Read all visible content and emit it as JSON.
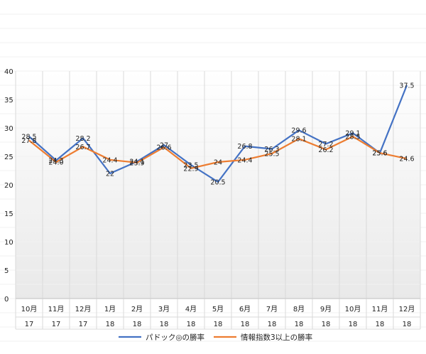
{
  "chart_data": {
    "type": "line",
    "categories": [
      "10月",
      "11月",
      "12月",
      "1月",
      "2月",
      "3月",
      "4月",
      "5月",
      "6月",
      "7月",
      "8月",
      "9月",
      "10月",
      "11月",
      "12月"
    ],
    "year_labels": [
      "17",
      "17",
      "17",
      "18",
      "18",
      "18",
      "18",
      "18",
      "18",
      "18",
      "18",
      "18",
      "18",
      "18",
      "18"
    ],
    "series": [
      {
        "name": "パドック◎の勝率",
        "color": "#4472C4",
        "values": [
          28.5,
          24.3,
          28.2,
          22,
          24.1,
          27,
          23.5,
          20.5,
          26.8,
          26.3,
          29.6,
          27.2,
          29.1,
          25.6,
          37.5
        ],
        "labels": [
          "28.5",
          "24.3",
          "28.2",
          "22",
          "24.1",
          "27",
          "23.5",
          "20.5",
          "26.8",
          "26.3",
          "29.6",
          "27.2",
          "29.1",
          "25.6",
          "37.5"
        ]
      },
      {
        "name": "情報指数3以上の勝率",
        "color": "#ED7D31",
        "values": [
          27.8,
          24.0,
          26.7,
          24.4,
          23.9,
          26.6,
          22.9,
          24,
          24.4,
          25.5,
          28.1,
          26.2,
          28.5,
          25.6,
          24.6
        ],
        "labels": [
          "27.8",
          "24.0",
          "26.7",
          "24.4",
          "23.9",
          "26.6",
          "22.9",
          "24",
          "24.4",
          "25.5",
          "28.1",
          "26.2",
          "28.5",
          "25.6",
          "24.6"
        ]
      }
    ],
    "ylim": [
      0,
      40
    ],
    "yticks": [
      0,
      5,
      10,
      15,
      20,
      25,
      30,
      35,
      40
    ],
    "grid": "vertical",
    "legend": "bottom"
  }
}
